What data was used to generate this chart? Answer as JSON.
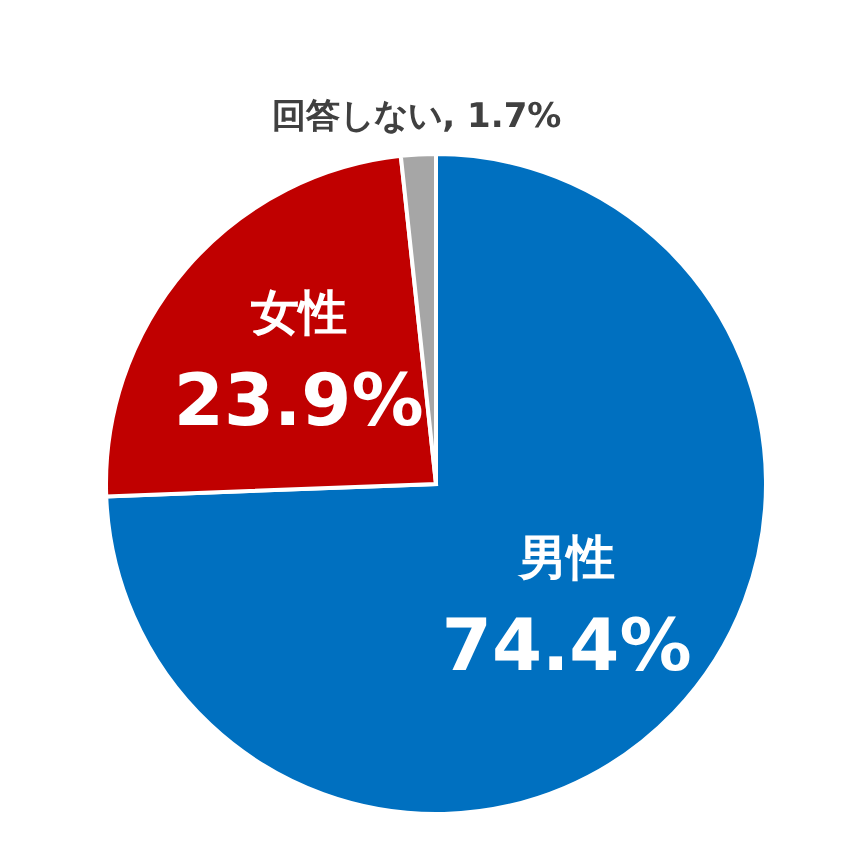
{
  "chart_data": {
    "type": "pie",
    "categories": [
      "男性",
      "女性",
      "回答しない"
    ],
    "values": [
      74.4,
      23.9,
      1.7
    ],
    "value_labels": [
      "74.4%",
      "23.9%",
      ", 1.7%"
    ],
    "colors": [
      "#0070c0",
      "#c00000",
      "#a6a6a6"
    ],
    "legend": false
  }
}
